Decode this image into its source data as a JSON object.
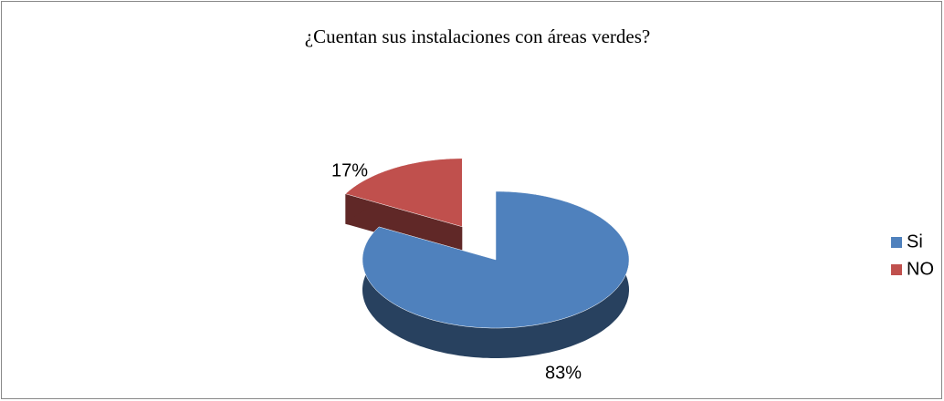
{
  "chart_data": {
    "type": "pie",
    "title": "¿Cuentan sus instalaciones con áreas verdes?",
    "categories": [
      "Si",
      "NO"
    ],
    "values": [
      83,
      17
    ],
    "value_labels": [
      "83%",
      "17%"
    ],
    "colors": [
      "#4f81bd",
      "#c0504d"
    ],
    "legend": "right"
  }
}
